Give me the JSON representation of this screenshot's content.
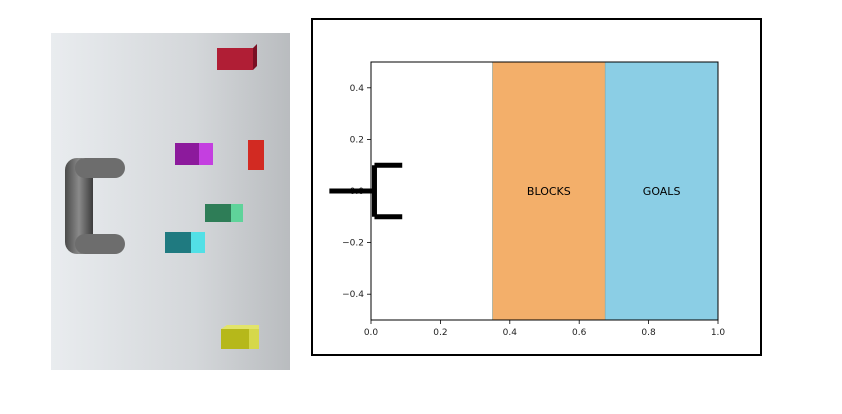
{
  "colors": {
    "blocks_region": "#f2a65a",
    "goals_region": "#7ec9e2",
    "gripper": "#000000",
    "cubes": [
      "#b01e35",
      "#9a1aa8",
      "#d22a22",
      "#2e8b57",
      "#1f8a8a",
      "#c8c81e"
    ]
  },
  "chart_data": {
    "type": "diagram",
    "xlim": [
      0.0,
      1.0
    ],
    "ylim": [
      -0.5,
      0.5
    ],
    "x_ticks": [
      "0.0",
      "0.2",
      "0.4",
      "0.6",
      "0.8",
      "1.0"
    ],
    "y_ticks": [
      "0.4",
      "0.2",
      "0.0",
      "−0.2",
      "−0.4"
    ],
    "y_tick_values": [
      0.4,
      0.2,
      0.0,
      -0.2,
      -0.4
    ],
    "x_tick_values": [
      0.0,
      0.2,
      0.4,
      0.6,
      0.8,
      1.0
    ],
    "regions": [
      {
        "label": "BLOCKS",
        "x0": 0.35,
        "x1": 0.675
      },
      {
        "label": "GOALS",
        "x0": 0.675,
        "x1": 1.0
      }
    ],
    "gripper": {
      "x_stem": [
        -0.12,
        0.01
      ],
      "y_center": 0.0,
      "x_jaw": [
        0.01,
        0.09
      ],
      "y_jaw": [
        0.1,
        -0.1
      ]
    }
  }
}
